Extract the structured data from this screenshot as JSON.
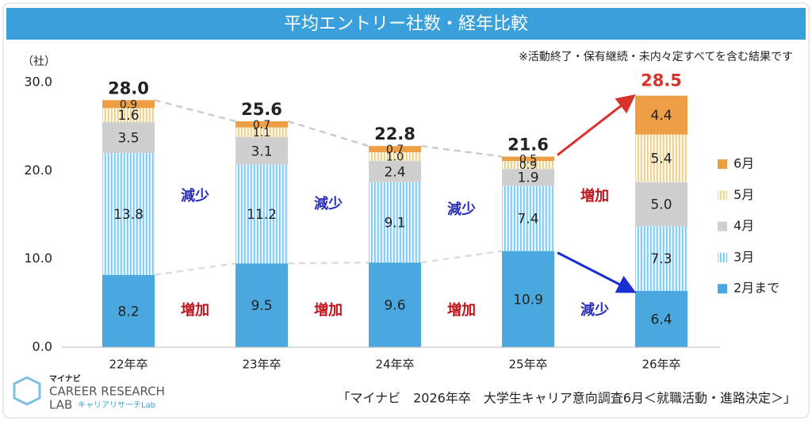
{
  "chart_data": {
    "type": "stacked_bar",
    "title": "平均エントリー社数・経年比較",
    "unit": "（社）",
    "note": "※活動終了・保有継続・未内々定すべてを含む結果です",
    "source": "「マイナビ　2026年卒　大学生キャリア意向調査6月＜就職活動・進路決定＞」",
    "logo": {
      "brand": "マイナビ",
      "line1": "CAREER RESEARCH",
      "line2": "LAB",
      "sub": "キャリアリサーチLab"
    },
    "categories": [
      "22年卒",
      "23年卒",
      "24年卒",
      "25年卒",
      "26年卒"
    ],
    "series": [
      {
        "name": "2月まで",
        "color": "#4aa8df",
        "pattern": "solid",
        "values": [
          8.2,
          9.5,
          9.6,
          10.9,
          6.4
        ],
        "value_labels": [
          "8.2",
          "9.5",
          "9.6",
          "10.9",
          "6.4"
        ]
      },
      {
        "name": "3月",
        "color": "#7cc3ec",
        "pattern": "lines",
        "values": [
          13.8,
          11.2,
          9.1,
          7.4,
          7.3
        ],
        "value_labels": [
          "13.8",
          "11.2",
          "9.1",
          "7.4",
          "7.3"
        ]
      },
      {
        "name": "4月",
        "color": "#cfcfcf",
        "pattern": "solid",
        "values": [
          3.5,
          3.1,
          2.4,
          1.9,
          5.0
        ],
        "value_labels": [
          "3.5",
          "3.1",
          "2.4",
          "1.9",
          "5.0"
        ]
      },
      {
        "name": "5月",
        "color": "#e8d6a4",
        "pattern": "lines",
        "values": [
          1.6,
          1.1,
          1.0,
          0.9,
          5.4
        ],
        "value_labels": [
          "1.6",
          "1.1",
          "1.0",
          "0.9",
          "5.4"
        ]
      },
      {
        "name": "6月",
        "color": "#ee9f45",
        "pattern": "solid",
        "values": [
          0.9,
          0.7,
          0.7,
          0.5,
          4.4
        ],
        "value_labels": [
          "0.9",
          "0.7",
          "0.7",
          "0.5",
          "4.4"
        ]
      }
    ],
    "totals": {
      "values": [
        28.0,
        25.6,
        22.8,
        21.6,
        28.5
      ],
      "value_labels": [
        "28.0",
        "25.6",
        "22.8",
        "21.6",
        "28.5"
      ],
      "highlight_color": "#d9312b"
    },
    "annotations_upper": [
      {
        "text": "減少",
        "color": "#2a2fb8"
      },
      {
        "text": "減少",
        "color": "#2a2fb8"
      },
      {
        "text": "減少",
        "color": "#2a2fb8"
      },
      {
        "text": "増加",
        "color": "#c0141a"
      }
    ],
    "annotations_lower": [
      {
        "text": "増加",
        "color": "#c0141a"
      },
      {
        "text": "増加",
        "color": "#c0141a"
      },
      {
        "text": "増加",
        "color": "#c0141a"
      },
      {
        "text": "減少",
        "color": "#2a2fb8"
      }
    ],
    "ylim": [
      0,
      30
    ],
    "yticks": [
      {
        "value": 0,
        "label": "0.0"
      },
      {
        "value": 10,
        "label": "10.0"
      },
      {
        "value": 20,
        "label": "20.0"
      },
      {
        "value": 30,
        "label": "30.0"
      }
    ]
  }
}
